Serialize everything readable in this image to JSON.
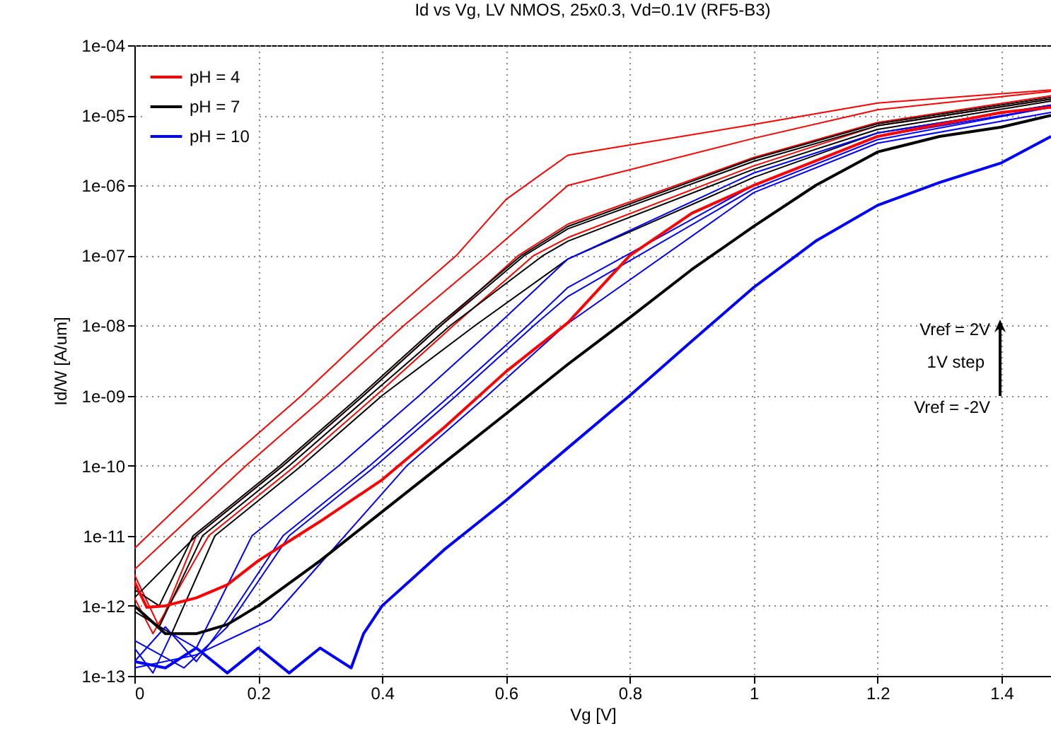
{
  "chart_data": {
    "type": "line",
    "title": "Id vs Vg, LV NMOS, 25x0.3, Vd=0.1V (RF5-B3)",
    "xlabel": "Vg [V]",
    "ylabel": "Id/W [A/um]",
    "log": "y",
    "grid": true,
    "legend": "top left",
    "marker": "none",
    "line_style": "solid",
    "xlim": [
      0,
      1.48
    ],
    "xticks": [
      0,
      0.2,
      0.4,
      0.6,
      0.8,
      1,
      1.2,
      1.4
    ],
    "ylim": [
      1e-13,
      0.0001
    ],
    "yticks": [
      {
        "value": 1e-13,
        "label": "1e-13"
      },
      {
        "value": 1e-12,
        "label": "1e-12"
      },
      {
        "value": 1e-11,
        "label": "1e-11"
      },
      {
        "value": 1e-10,
        "label": "1e-10"
      },
      {
        "value": 1e-09,
        "label": "1e-09"
      },
      {
        "value": 1e-08,
        "label": "1e-08"
      },
      {
        "value": 1e-07,
        "label": "1e-07"
      },
      {
        "value": 1e-06,
        "label": "1e-06"
      },
      {
        "value": 1e-05,
        "label": "1e-05"
      },
      {
        "value": 0.0001,
        "label": "1e-04"
      }
    ],
    "annotations": [
      "Vref = 2V",
      "1V step",
      "Vref = -2V"
    ],
    "series": [
      {
        "color": "#ff0000",
        "x": [
          0,
          0.14,
          0.27,
          0.39,
          0.52,
          0.6,
          0.7,
          1.0,
          1.2,
          1.48
        ],
        "values": [
          6.6e-12,
          1e-10,
          1e-09,
          1e-08,
          1e-07,
          6.3e-07,
          2.7e-06,
          7.4e-06,
          1.5e-05,
          2.3e-05
        ]
      },
      {
        "color": "#ff0000",
        "x": [
          0,
          0.18,
          0.31,
          0.435,
          0.57,
          0.7,
          1.0,
          1.2,
          1.48
        ],
        "values": [
          3.3e-12,
          1e-10,
          1e-09,
          1e-08,
          1e-07,
          1e-06,
          4.7e-06,
          1.2e-05,
          2.2e-05
        ]
      },
      {
        "color": "#ff0000",
        "x": [
          0,
          0.04,
          0.1,
          0.24,
          0.37,
          0.495,
          0.62,
          0.7,
          1.0,
          1.2,
          1.48
        ],
        "values": [
          2.8e-12,
          5e-13,
          1e-11,
          1e-10,
          1e-09,
          1e-08,
          1e-07,
          2.8e-07,
          2.5e-06,
          7.9e-06,
          1.9e-05
        ]
      },
      {
        "color": "#ff0000",
        "x": [
          0,
          0.03,
          0.12,
          0.26,
          0.39,
          0.515,
          0.645,
          0.7,
          1.0,
          1.2,
          1.48
        ],
        "values": [
          1.3e-12,
          4e-13,
          1e-11,
          1e-10,
          1e-09,
          1e-08,
          1e-07,
          1.8e-07,
          1.9e-06,
          7.1e-06,
          1.7e-05
        ]
      },
      {
        "color": "#000000",
        "x": [
          0,
          0.04,
          0.095,
          0.235,
          0.365,
          0.49,
          0.625,
          0.7,
          1.0,
          1.2,
          1.48
        ],
        "values": [
          1.7e-12,
          1e-12,
          1e-11,
          1e-10,
          1e-09,
          1e-08,
          1e-07,
          2.6e-07,
          2.4e-06,
          7.6e-06,
          1.8e-05
        ]
      },
      {
        "color": "#000000",
        "x": [
          0,
          0.1,
          0.24,
          0.37,
          0.495,
          0.63,
          0.7,
          1.0,
          1.2,
          1.48
        ],
        "values": [
          1.3e-12,
          1e-11,
          1e-10,
          1e-09,
          1e-08,
          1e-07,
          2.4e-07,
          2.2e-06,
          7.1e-06,
          1.7e-05
        ]
      },
      {
        "color": "#000000",
        "x": [
          0,
          0.04,
          0.11,
          0.25,
          0.38,
          0.51,
          0.66,
          0.7,
          1.0,
          1.2,
          1.48
        ],
        "values": [
          1e-12,
          5e-13,
          1e-11,
          1e-10,
          1e-09,
          1e-08,
          1e-07,
          1.6e-07,
          1.7e-06,
          6.3e-06,
          1.6e-05
        ]
      },
      {
        "color": "#000000",
        "x": [
          0,
          0.06,
          0.13,
          0.27,
          0.4,
          0.55,
          0.7,
          1.0,
          1.2,
          1.48
        ],
        "values": [
          8.3e-13,
          4e-13,
          1e-11,
          1e-10,
          1e-09,
          1e-08,
          8.9e-08,
          1.3e-06,
          5.6e-06,
          1.4e-05
        ]
      },
      {
        "color": "#0000ff",
        "x": [
          0,
          0.03,
          0.06,
          0.1,
          0.19,
          0.33,
          0.46,
          0.585,
          0.7,
          1.0,
          1.2,
          1.48
        ],
        "values": [
          2.5e-13,
          1.1e-13,
          4e-13,
          2.5e-13,
          1e-11,
          1e-10,
          1e-09,
          1e-08,
          8.9e-08,
          1.5e-06,
          5.6e-06,
          1.4e-05
        ]
      },
      {
        "color": "#0000ff",
        "x": [
          0,
          0.05,
          0.1,
          0.15,
          0.24,
          0.38,
          0.51,
          0.635,
          0.7,
          1.0,
          1.2,
          1.48
        ],
        "values": [
          1.6e-13,
          5e-13,
          1.6e-13,
          6.3e-13,
          1e-11,
          1e-10,
          1e-09,
          1e-08,
          3.5e-08,
          1e-06,
          5e-06,
          1.3e-05
        ]
      },
      {
        "color": "#0000ff",
        "x": [
          0,
          0.08,
          0.15,
          0.25,
          0.39,
          0.52,
          0.645,
          0.7,
          1.0,
          1.2,
          1.48
        ],
        "values": [
          3.2e-13,
          1.3e-13,
          5e-13,
          1e-11,
          1e-10,
          1e-09,
          1e-08,
          2.6e-08,
          8.9e-07,
          4.5e-06,
          1.3e-05
        ]
      },
      {
        "color": "#0000ff",
        "x": [
          0,
          0.1,
          0.22,
          0.3,
          0.44,
          0.57,
          0.695,
          1.0,
          1.2,
          1.48
        ],
        "values": [
          1.3e-13,
          2e-13,
          6.3e-13,
          4e-12,
          1e-10,
          1e-09,
          1e-08,
          7.9e-07,
          4e-06,
          1.1e-05
        ]
      },
      {
        "name": "pH = 4",
        "color": "#ff0000",
        "x": [
          0,
          0.02,
          0.05,
          0.1,
          0.15,
          0.2,
          0.3,
          0.4,
          0.5,
          0.6,
          0.7,
          0.8,
          0.9,
          1.0,
          1.2,
          1.4,
          1.48
        ],
        "values": [
          2.2e-12,
          9.5e-13,
          1e-12,
          1.3e-12,
          2e-12,
          4.4e-12,
          1.6e-11,
          6.3e-11,
          3.5e-10,
          2.2e-09,
          1.1e-08,
          1e-07,
          4e-07,
          1e-06,
          5e-06,
          1.1e-05,
          1.3e-05
        ]
      },
      {
        "name": "pH = 7",
        "color": "#000000",
        "x": [
          0,
          0.05,
          0.1,
          0.15,
          0.2,
          0.3,
          0.4,
          0.5,
          0.6,
          0.7,
          0.8,
          0.9,
          1.0,
          1.1,
          1.2,
          1.3,
          1.4,
          1.48
        ],
        "values": [
          1e-12,
          4e-13,
          4e-13,
          5.4e-13,
          1e-12,
          4.4e-12,
          2.2e-11,
          1.1e-10,
          5.5e-10,
          2.8e-09,
          1.3e-08,
          6.3e-08,
          2.6e-07,
          1e-06,
          3e-06,
          5e-06,
          6.8e-06,
          1e-05
        ]
      },
      {
        "name": "pH = 10",
        "color": "#0000ff",
        "x": [
          0,
          0.05,
          0.1,
          0.15,
          0.2,
          0.25,
          0.3,
          0.35,
          0.37,
          0.4,
          0.45,
          0.5,
          0.6,
          0.7,
          0.8,
          0.9,
          1.0,
          1.1,
          1.2,
          1.3,
          1.4,
          1.48
        ],
        "values": [
          1.6e-13,
          1.3e-13,
          2.5e-13,
          1.1e-13,
          2.5e-13,
          1.1e-13,
          2.5e-13,
          1.3e-13,
          4e-13,
          1e-12,
          2.5e-12,
          6.3e-12,
          3.2e-11,
          1.8e-10,
          1e-09,
          6e-09,
          3.5e-08,
          1.6e-07,
          5.2e-07,
          1.1e-06,
          2.1e-06,
          5e-06
        ]
      }
    ]
  }
}
